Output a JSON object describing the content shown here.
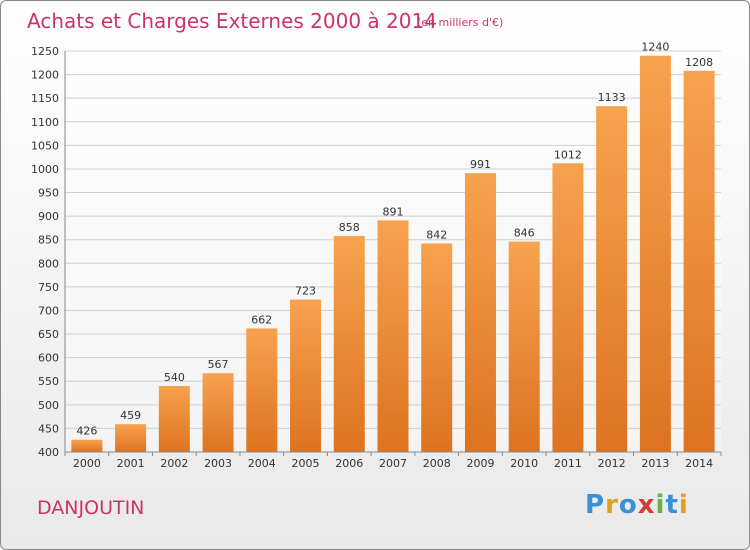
{
  "header": {
    "title": "Achats et Charges Externes 2000 à 2014",
    "subtitle": "(en milliers d'€)"
  },
  "footer": {
    "place": "DANJOUTIN",
    "logo": "Proxiti"
  },
  "colors": {
    "bar_top": "#f7a24e",
    "bar_bottom": "#dd7320",
    "text_accent": "#cc3366",
    "grid": "#d0d0d0"
  },
  "chart_data": {
    "type": "bar",
    "title": "Achats et Charges Externes 2000 à 2014",
    "subtitle": "(en milliers d'€)",
    "xlabel": "",
    "ylabel": "",
    "categories": [
      "2000",
      "2001",
      "2002",
      "2003",
      "2004",
      "2005",
      "2006",
      "2007",
      "2008",
      "2009",
      "2010",
      "2011",
      "2012",
      "2013",
      "2014"
    ],
    "values": [
      426,
      459,
      540,
      567,
      662,
      723,
      858,
      891,
      842,
      991,
      846,
      1012,
      1133,
      1240,
      1208
    ],
    "ylim": [
      400,
      1250
    ],
    "yticks": [
      400,
      450,
      500,
      550,
      600,
      650,
      700,
      750,
      800,
      850,
      900,
      950,
      1000,
      1050,
      1100,
      1150,
      1200,
      1250
    ],
    "grid": true,
    "legend": "none"
  }
}
